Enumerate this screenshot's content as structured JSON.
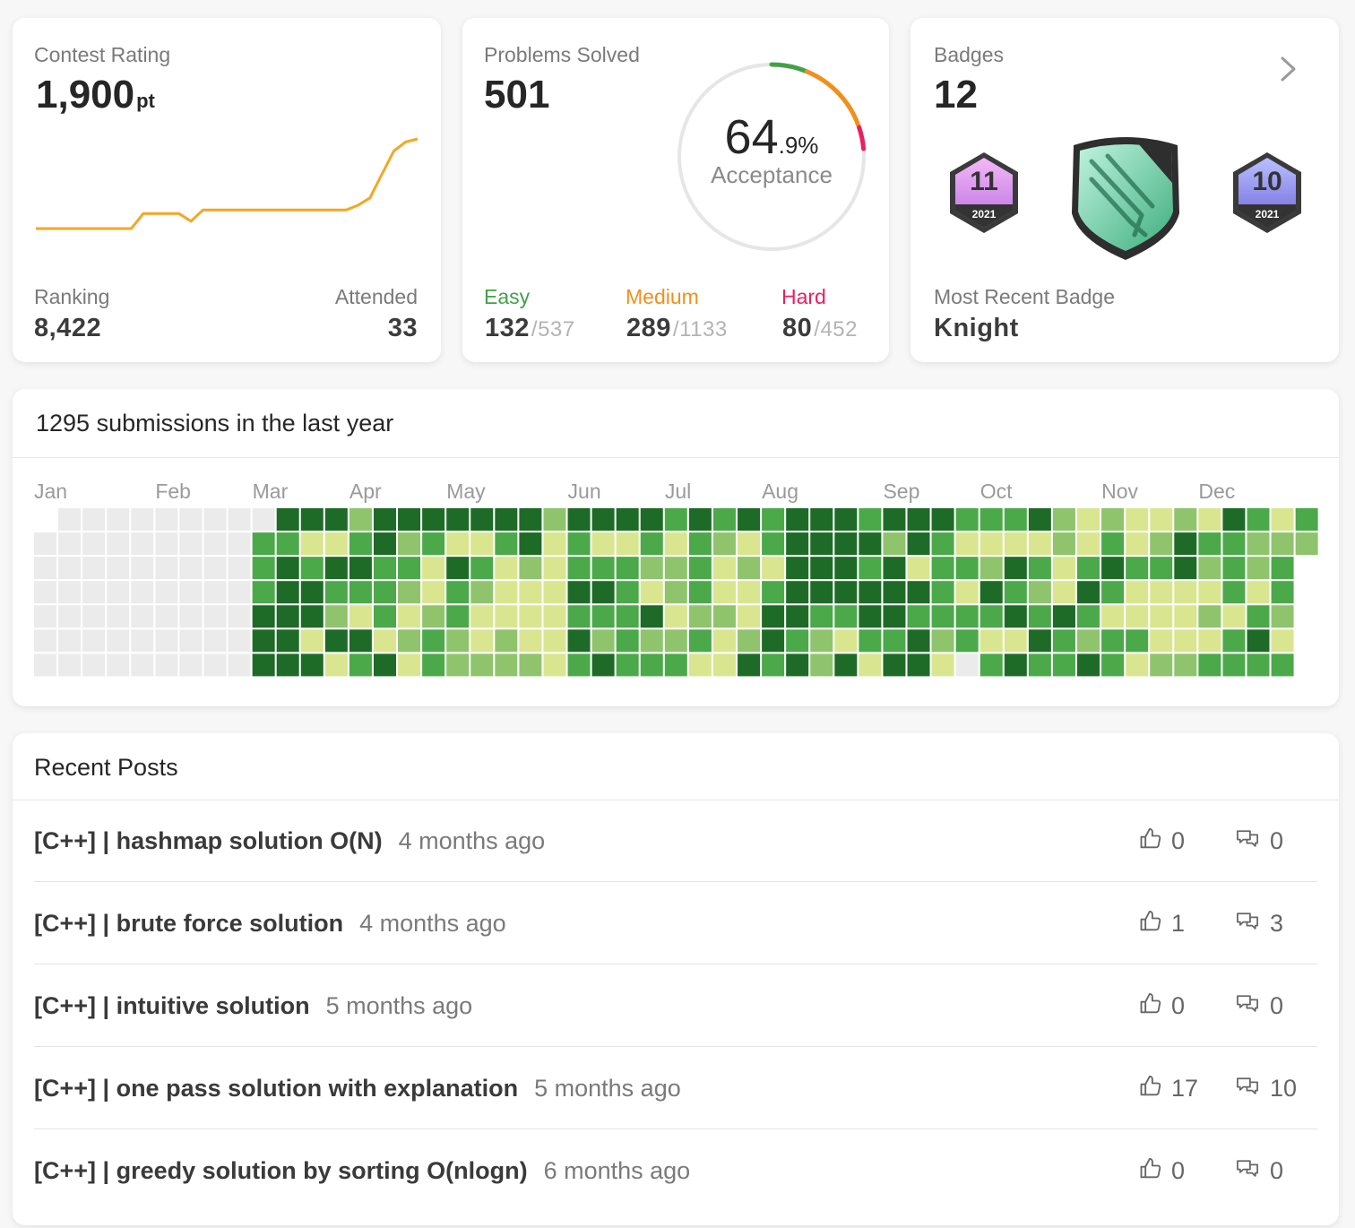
{
  "contest_rating": {
    "label": "Contest Rating",
    "rating": "1,900",
    "unit": "pt",
    "line_color": "#f5a623",
    "history": [
      1500,
      1500,
      1500,
      1500,
      1500,
      1500,
      1500,
      1500,
      1500,
      1567,
      1567,
      1567,
      1567,
      1533,
      1583,
      1583,
      1583,
      1583,
      1583,
      1583,
      1583,
      1583,
      1583,
      1583,
      1583,
      1583,
      1583,
      1604,
      1637,
      1742,
      1846,
      1887,
      1900
    ],
    "ranking_label": "Ranking",
    "ranking": "8,422",
    "attended_label": "Attended",
    "attended": "33"
  },
  "problems_solved": {
    "label": "Problems Solved",
    "total": "501",
    "acceptance": {
      "integer": "64",
      "fraction": ".9%",
      "label": "Acceptance"
    },
    "difficulties": [
      {
        "name": "Easy",
        "color": "#43a047",
        "solved": 132,
        "separator": "/",
        "total": 537
      },
      {
        "name": "Medium",
        "color": "#f0901c",
        "solved": 289,
        "separator": "/",
        "total": 1133
      },
      {
        "name": "Hard",
        "color": "#e91e63",
        "solved": 80,
        "separator": "/",
        "total": 452
      }
    ]
  },
  "badges": {
    "label": "Badges",
    "count": "12",
    "items": [
      {
        "number": "11",
        "year": "2021"
      },
      {
        "number": "10",
        "year": "2021"
      }
    ],
    "recent_label": "Most Recent Badge",
    "recent": "Knight"
  },
  "heatmap": {
    "title": "1295 submissions in the last year",
    "months": [
      "Jan",
      "Feb",
      "Mar",
      "Apr",
      "May",
      "Jun",
      "Jul",
      "Aug",
      "Sep",
      "Oct",
      "Nov",
      "Dec"
    ],
    "level_colors": [
      "#ebebeb",
      "#d9e68f",
      "#8fc46d",
      "#4ba94a",
      "#1e6b27"
    ],
    "cells": [
      [
        null,
        0,
        0,
        0,
        0,
        0,
        0,
        0,
        0,
        0,
        4,
        4,
        4,
        2,
        4,
        4,
        4,
        4,
        4,
        4,
        4,
        2,
        4,
        4,
        4,
        4,
        3,
        4,
        3,
        4,
        3,
        4,
        4,
        4,
        3,
        4,
        4,
        4,
        3,
        3,
        3,
        4,
        2,
        1,
        2,
        1,
        1,
        2,
        1,
        4,
        3,
        1,
        3
      ],
      [
        0,
        0,
        0,
        0,
        0,
        0,
        0,
        0,
        0,
        3,
        3,
        1,
        1,
        3,
        4,
        2,
        3,
        1,
        1,
        3,
        4,
        1,
        3,
        1,
        1,
        3,
        1,
        3,
        2,
        1,
        3,
        4,
        4,
        4,
        4,
        2,
        4,
        3,
        1,
        1,
        1,
        1,
        2,
        1,
        3,
        1,
        2,
        4,
        3,
        3,
        2,
        2,
        2
      ],
      [
        0,
        0,
        0,
        0,
        0,
        0,
        0,
        0,
        0,
        3,
        4,
        3,
        4,
        4,
        3,
        3,
        1,
        4,
        3,
        1,
        2,
        1,
        3,
        3,
        3,
        2,
        2,
        3,
        1,
        2,
        1,
        4,
        4,
        4,
        3,
        4,
        1,
        3,
        3,
        2,
        4,
        3,
        1,
        3,
        4,
        3,
        3,
        4,
        2,
        3,
        2,
        3,
        null
      ],
      [
        0,
        0,
        0,
        0,
        0,
        0,
        0,
        0,
        0,
        3,
        4,
        4,
        3,
        3,
        3,
        2,
        1,
        3,
        2,
        1,
        1,
        1,
        4,
        4,
        3,
        1,
        2,
        3,
        1,
        1,
        3,
        4,
        4,
        4,
        4,
        4,
        4,
        3,
        1,
        4,
        3,
        2,
        1,
        4,
        3,
        1,
        1,
        1,
        1,
        3,
        1,
        3,
        null
      ],
      [
        0,
        0,
        0,
        0,
        0,
        0,
        0,
        0,
        0,
        4,
        4,
        4,
        2,
        1,
        3,
        1,
        2,
        3,
        1,
        1,
        1,
        1,
        3,
        3,
        3,
        4,
        1,
        2,
        2,
        1,
        4,
        4,
        3,
        3,
        4,
        4,
        3,
        3,
        3,
        3,
        4,
        3,
        4,
        3,
        1,
        1,
        1,
        1,
        2,
        1,
        3,
        2,
        null
      ],
      [
        0,
        0,
        0,
        0,
        0,
        0,
        0,
        0,
        0,
        4,
        4,
        1,
        4,
        4,
        1,
        2,
        3,
        2,
        1,
        2,
        1,
        1,
        4,
        2,
        3,
        2,
        2,
        3,
        1,
        2,
        4,
        3,
        2,
        1,
        3,
        3,
        4,
        2,
        3,
        1,
        1,
        4,
        3,
        2,
        3,
        3,
        1,
        1,
        1,
        3,
        4,
        1,
        null
      ],
      [
        0,
        0,
        0,
        0,
        0,
        0,
        0,
        0,
        0,
        4,
        4,
        4,
        1,
        3,
        4,
        1,
        3,
        2,
        2,
        2,
        2,
        1,
        3,
        4,
        3,
        3,
        3,
        1,
        1,
        4,
        3,
        4,
        2,
        4,
        1,
        4,
        4,
        1,
        0,
        3,
        4,
        3,
        3,
        4,
        3,
        1,
        2,
        2,
        3,
        3,
        3,
        3,
        null
      ]
    ]
  },
  "posts": {
    "title": "Recent Posts",
    "items": [
      {
        "title": "[C++] | hashmap solution O(N)",
        "time": "4 months ago",
        "likes": 0,
        "comments": 0
      },
      {
        "title": "[C++] | brute force solution",
        "time": "4 months ago",
        "likes": 1,
        "comments": 3
      },
      {
        "title": "[C++] | intuitive solution",
        "time": "5 months ago",
        "likes": 0,
        "comments": 0
      },
      {
        "title": "[C++] | one pass solution with explanation",
        "time": "5 months ago",
        "likes": 17,
        "comments": 10
      },
      {
        "title": "[C++] | greedy solution by sorting O(nlogn)",
        "time": "6 months ago",
        "likes": 0,
        "comments": 0
      }
    ]
  }
}
